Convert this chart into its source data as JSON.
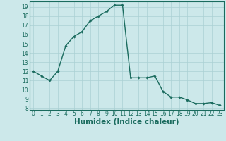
{
  "x": [
    0,
    1,
    2,
    3,
    4,
    5,
    6,
    7,
    8,
    9,
    10,
    11,
    12,
    13,
    14,
    15,
    16,
    17,
    18,
    19,
    20,
    21,
    22,
    23
  ],
  "y": [
    12.0,
    11.5,
    11.0,
    12.0,
    14.8,
    15.8,
    16.3,
    17.5,
    18.0,
    18.5,
    19.2,
    19.2,
    11.3,
    11.3,
    11.3,
    11.5,
    9.8,
    9.2,
    9.2,
    8.9,
    8.5,
    8.5,
    8.6,
    8.3
  ],
  "line_color": "#1a6b5e",
  "marker": "D",
  "marker_size": 1.8,
  "bg_color": "#cce8ea",
  "grid_color": "#aad0d4",
  "xlabel": "Humidex (Indice chaleur)",
  "xlim": [
    -0.5,
    23.5
  ],
  "ylim": [
    7.8,
    19.6
  ],
  "yticks": [
    8,
    9,
    10,
    11,
    12,
    13,
    14,
    15,
    16,
    17,
    18,
    19
  ],
  "xticks": [
    0,
    1,
    2,
    3,
    4,
    5,
    6,
    7,
    8,
    9,
    10,
    11,
    12,
    13,
    14,
    15,
    16,
    17,
    18,
    19,
    20,
    21,
    22,
    23
  ],
  "tick_fontsize": 5.5,
  "xlabel_fontsize": 7.5,
  "line_width": 1.0,
  "axis_color": "#1a6b5e"
}
